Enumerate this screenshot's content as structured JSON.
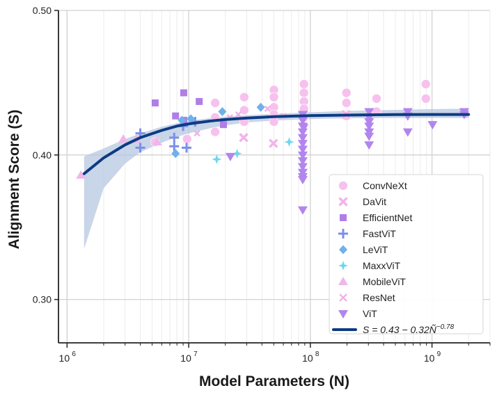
{
  "chart_data": {
    "type": "scatter",
    "title": "",
    "xlabel": "Model Parameters (N)",
    "ylabel": "Alignment Score (S)",
    "xscale": "log",
    "xlim": [
      850000,
      3000000000
    ],
    "ylim": [
      0.27,
      0.5
    ],
    "x_ticks": [
      {
        "value": 1000000,
        "base": "10",
        "exp": "6"
      },
      {
        "value": 10000000,
        "base": "10",
        "exp": "7"
      },
      {
        "value": 100000000,
        "base": "10",
        "exp": "8"
      },
      {
        "value": 1000000000,
        "base": "10",
        "exp": "9"
      }
    ],
    "y_ticks": [
      {
        "value": 0.3,
        "label": "0.30"
      },
      {
        "value": 0.4,
        "label": "0.40"
      },
      {
        "value": 0.5,
        "label": "0.50"
      }
    ],
    "grid": true,
    "legend_position": "bottom-right",
    "series": [
      {
        "name": "ConvNeXt",
        "marker": "circle",
        "color": "#f7c1ee",
        "points": [
          [
            5300000,
            0.409
          ],
          [
            9700000,
            0.411
          ],
          [
            16500000,
            0.426
          ],
          [
            16500000,
            0.436
          ],
          [
            16500000,
            0.416
          ],
          [
            28600000,
            0.44
          ],
          [
            28600000,
            0.431
          ],
          [
            28600000,
            0.423
          ],
          [
            50200000,
            0.445
          ],
          [
            50200000,
            0.44
          ],
          [
            50200000,
            0.433
          ],
          [
            50200000,
            0.428
          ],
          [
            50200000,
            0.423
          ],
          [
            88600000,
            0.449
          ],
          [
            88600000,
            0.443
          ],
          [
            88600000,
            0.437
          ],
          [
            88600000,
            0.432
          ],
          [
            88600000,
            0.426
          ],
          [
            198000000,
            0.443
          ],
          [
            198000000,
            0.436
          ],
          [
            198000000,
            0.427
          ],
          [
            350000000,
            0.439
          ],
          [
            350000000,
            0.43
          ],
          [
            890000000,
            0.449
          ],
          [
            890000000,
            0.439
          ]
        ]
      },
      {
        "name": "DaVit",
        "marker": "x",
        "color": "#f2b3ea",
        "points": [
          [
            28300000,
            0.412
          ],
          [
            49700000,
            0.408
          ],
          [
            87900000,
            0.428
          ],
          [
            196800000,
            0.428
          ]
        ]
      },
      {
        "name": "EfficientNet",
        "marker": "square",
        "color": "#b07ee6",
        "points": [
          [
            5300000,
            0.436
          ],
          [
            7800000,
            0.427
          ],
          [
            9100000,
            0.443
          ],
          [
            12200000,
            0.437
          ],
          [
            19300000,
            0.421
          ],
          [
            9100000,
            0.424
          ]
        ]
      },
      {
        "name": "FastViT",
        "marker": "plus",
        "color": "#7b8fe8",
        "points": [
          [
            4000000,
            0.415
          ],
          [
            4000000,
            0.405
          ],
          [
            7600000,
            0.412
          ],
          [
            7600000,
            0.406
          ],
          [
            9600000,
            0.405
          ],
          [
            11300000,
            0.423
          ],
          [
            9000000,
            0.42
          ]
        ]
      },
      {
        "name": "LeViT",
        "marker": "diamond",
        "color": "#6fb1ea",
        "points": [
          [
            7800000,
            0.401
          ],
          [
            8800000,
            0.424
          ],
          [
            10400000,
            0.425
          ],
          [
            18900000,
            0.43
          ],
          [
            39100000,
            0.433
          ]
        ]
      },
      {
        "name": "MaxxViT",
        "marker": "star4",
        "color": "#6ad8ee",
        "points": [
          [
            17000000,
            0.397
          ],
          [
            25000000,
            0.401
          ],
          [
            67000000,
            0.409
          ]
        ]
      },
      {
        "name": "MobileViT",
        "marker": "triangle-up",
        "color": "#f1b5e9",
        "points": [
          [
            1300000,
            0.386
          ],
          [
            2900000,
            0.411
          ],
          [
            3700000,
            0.411
          ],
          [
            5500000,
            0.409
          ]
        ]
      },
      {
        "name": "ResNet",
        "marker": "x-small",
        "color": "#f0b0e6",
        "points": [
          [
            11700000,
            0.415
          ],
          [
            21800000,
            0.426
          ],
          [
            25600000,
            0.428
          ],
          [
            44500000,
            0.432
          ],
          [
            60200000,
            0.427
          ]
        ]
      },
      {
        "name": "ViT",
        "marker": "triangle-down",
        "color": "#b285ee",
        "points": [
          [
            22000000,
            0.399
          ],
          [
            86600000,
            0.428
          ],
          [
            86600000,
            0.424
          ],
          [
            86600000,
            0.42
          ],
          [
            86600000,
            0.416
          ],
          [
            86600000,
            0.412
          ],
          [
            86600000,
            0.408
          ],
          [
            86600000,
            0.404
          ],
          [
            86600000,
            0.4
          ],
          [
            86600000,
            0.396
          ],
          [
            86600000,
            0.392
          ],
          [
            86600000,
            0.388
          ],
          [
            86600000,
            0.385
          ],
          [
            86600000,
            0.383
          ],
          [
            86600000,
            0.362
          ],
          [
            88000000,
            0.419
          ],
          [
            304000000,
            0.43
          ],
          [
            304000000,
            0.426
          ],
          [
            304000000,
            0.423
          ],
          [
            304000000,
            0.42
          ],
          [
            304000000,
            0.416
          ],
          [
            304000000,
            0.413
          ],
          [
            304000000,
            0.407
          ],
          [
            632000000,
            0.43
          ],
          [
            632000000,
            0.427
          ],
          [
            632000000,
            0.416
          ],
          [
            1010000000,
            0.421
          ],
          [
            1840000000,
            0.43
          ],
          [
            1840000000,
            0.428
          ]
        ]
      }
    ],
    "fit": {
      "name": "S = 0.43 − 0.32Ñ^(−0.78)",
      "label_main": "S = 0.43 − 0.32Ñ",
      "label_sup": "−0.78",
      "color": "#0d3b82",
      "ci_color": "#b7c7e0",
      "points": [
        [
          1380000,
          0.387
        ],
        [
          2000000,
          0.398
        ],
        [
          3000000,
          0.407
        ],
        [
          4000000,
          0.412
        ],
        [
          6000000,
          0.417
        ],
        [
          8000000,
          0.42
        ],
        [
          10000000,
          0.4215
        ],
        [
          15000000,
          0.4235
        ],
        [
          20000000,
          0.4245
        ],
        [
          30000000,
          0.4255
        ],
        [
          50000000,
          0.4265
        ],
        [
          100000000,
          0.4272
        ],
        [
          200000000,
          0.4276
        ],
        [
          500000000,
          0.4279
        ],
        [
          1000000000,
          0.428
        ],
        [
          2000000000,
          0.428
        ]
      ],
      "ci_upper": [
        [
          1380000,
          0.399
        ],
        [
          2000000,
          0.4045
        ],
        [
          3000000,
          0.411
        ],
        [
          4000000,
          0.415
        ],
        [
          6000000,
          0.4195
        ],
        [
          8000000,
          0.422
        ],
        [
          10000000,
          0.4235
        ],
        [
          15000000,
          0.4255
        ],
        [
          20000000,
          0.4265
        ],
        [
          30000000,
          0.4275
        ],
        [
          50000000,
          0.4285
        ],
        [
          100000000,
          0.4295
        ],
        [
          200000000,
          0.4305
        ],
        [
          500000000,
          0.4312
        ],
        [
          1000000000,
          0.4317
        ],
        [
          2000000000,
          0.432
        ]
      ],
      "ci_lower": [
        [
          1380000,
          0.335
        ],
        [
          2000000,
          0.377
        ],
        [
          3000000,
          0.394
        ],
        [
          4000000,
          0.402
        ],
        [
          6000000,
          0.4085
        ],
        [
          8000000,
          0.4125
        ],
        [
          10000000,
          0.415
        ],
        [
          15000000,
          0.4185
        ],
        [
          20000000,
          0.4205
        ],
        [
          30000000,
          0.4225
        ],
        [
          50000000,
          0.4238
        ],
        [
          100000000,
          0.4248
        ],
        [
          200000000,
          0.4254
        ],
        [
          500000000,
          0.4256
        ],
        [
          1000000000,
          0.4256
        ],
        [
          2000000000,
          0.4255
        ]
      ]
    }
  }
}
